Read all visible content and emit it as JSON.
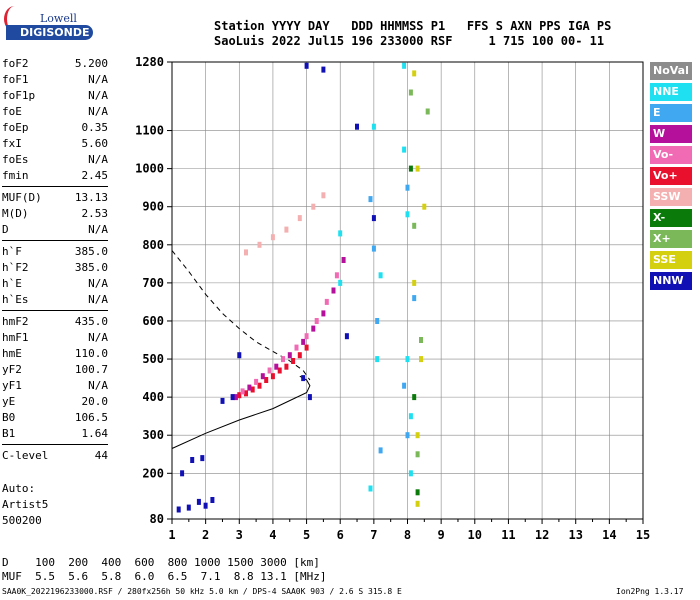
{
  "logo": {
    "line1": "Lowell",
    "line2": "DIGISONDE"
  },
  "header": {
    "line1": "Station YYYY DAY   DDD HHMMSS P1   FFS S AXN PPS IGA PS",
    "line2": "SaoLuis 2022 Jul15 196 233000 RSF     1 715 100 00- 11"
  },
  "params": [
    {
      "label": "foF2",
      "value": "5.200"
    },
    {
      "label": "foF1",
      "value": "N/A"
    },
    {
      "label": "foF1p",
      "value": "N/A"
    },
    {
      "label": "foE",
      "value": "N/A"
    },
    {
      "label": "foEp",
      "value": "0.35"
    },
    {
      "label": "fxI",
      "value": "5.60"
    },
    {
      "label": "foEs",
      "value": "N/A"
    },
    {
      "label": "fmin",
      "value": "2.45"
    },
    {
      "label": "MUF(D)",
      "value": "13.13"
    },
    {
      "label": "M(D)",
      "value": "2.53"
    },
    {
      "label": "D",
      "value": "N/A"
    },
    {
      "label": "h`F",
      "value": "385.0"
    },
    {
      "label": "h`F2",
      "value": "385.0"
    },
    {
      "label": "h`E",
      "value": "N/A"
    },
    {
      "label": "h`Es",
      "value": "N/A"
    },
    {
      "label": "hmF2",
      "value": "435.0"
    },
    {
      "label": "hmF1",
      "value": "N/A"
    },
    {
      "label": "hmE",
      "value": "110.0"
    },
    {
      "label": "yF2",
      "value": "100.7"
    },
    {
      "label": "yF1",
      "value": "N/A"
    },
    {
      "label": "yE",
      "value": "20.0"
    },
    {
      "label": "B0",
      "value": "106.5"
    },
    {
      "label": "B1",
      "value": "1.64"
    },
    {
      "label": "C-level",
      "value": "44"
    }
  ],
  "autoscale": {
    "line1": "Auto:",
    "line2": "Artist5",
    "line3": "500200"
  },
  "legend": [
    {
      "label": "NoVal",
      "color": "#8c8c8c",
      "text_color": "#ffffff"
    },
    {
      "label": "NNE",
      "color": "#1ee0f0",
      "text_color": "#ffffff"
    },
    {
      "label": "E",
      "color": "#3fa8f0",
      "text_color": "#ffffff"
    },
    {
      "label": "W",
      "color": "#b4109c",
      "text_color": "#ffffff"
    },
    {
      "label": "Vo-",
      "color": "#f06ab4",
      "text_color": "#ffffff"
    },
    {
      "label": "Vo+",
      "color": "#e8102c",
      "text_color": "#ffffff"
    },
    {
      "label": "SSW",
      "color": "#f4b0b0",
      "text_color": "#ffffff"
    },
    {
      "label": "X-",
      "color": "#0a7a0a",
      "text_color": "#ffffff"
    },
    {
      "label": "X+",
      "color": "#7ab85a",
      "text_color": "#ffffff"
    },
    {
      "label": "SSE",
      "color": "#d4d010",
      "text_color": "#ffffff"
    },
    {
      "label": "NNW",
      "color": "#1010b4",
      "text_color": "#ffffff"
    }
  ],
  "footer": {
    "d_row": "D    100  200  400  600  800 1000 1500 3000 [km]",
    "muf_row": "MUF  5.5  5.6  5.8  6.0  6.5  7.1  8.8 13.1 [MHz]",
    "source": "SAA0K_2022196233000.RSF / 280fx256h 50 kHz 5.0 km / DPS-4 SAA0K 903 / 2.6 S 315.8 E",
    "version": "Ion2Png 1.3.17"
  },
  "chart_data": {
    "type": "scatter",
    "title": "",
    "xlabel": "",
    "ylabel": "",
    "xlim": [
      1,
      15
    ],
    "ylim": [
      80,
      1280
    ],
    "x_ticks": [
      1,
      2,
      3,
      4,
      5,
      6,
      7,
      8,
      9,
      10,
      11,
      12,
      13,
      14,
      15
    ],
    "y_ticks": [
      80,
      200,
      300,
      400,
      500,
      600,
      700,
      800,
      900,
      1000,
      1100,
      1280
    ],
    "grid": true,
    "series": [
      {
        "name": "Vo+",
        "color": "#e8102c",
        "points": [
          [
            3.0,
            405
          ],
          [
            3.2,
            410
          ],
          [
            3.4,
            420
          ],
          [
            3.6,
            430
          ],
          [
            3.8,
            445
          ],
          [
            4.0,
            455
          ],
          [
            4.2,
            470
          ],
          [
            4.4,
            480
          ],
          [
            4.6,
            495
          ],
          [
            4.8,
            510
          ],
          [
            5.0,
            530
          ]
        ]
      },
      {
        "name": "Vo-",
        "color": "#f06ab4",
        "points": [
          [
            3.1,
            415
          ],
          [
            3.5,
            440
          ],
          [
            3.9,
            470
          ],
          [
            4.3,
            500
          ],
          [
            4.7,
            530
          ],
          [
            5.0,
            560
          ],
          [
            5.3,
            600
          ],
          [
            5.6,
            650
          ],
          [
            5.9,
            720
          ]
        ]
      },
      {
        "name": "W",
        "color": "#b4109c",
        "points": [
          [
            2.9,
            400
          ],
          [
            3.3,
            425
          ],
          [
            3.7,
            455
          ],
          [
            4.1,
            480
          ],
          [
            4.5,
            510
          ],
          [
            4.9,
            545
          ],
          [
            5.2,
            580
          ],
          [
            5.5,
            620
          ],
          [
            5.8,
            680
          ],
          [
            6.1,
            760
          ]
        ]
      },
      {
        "name": "SSW",
        "color": "#f4b0b0",
        "points": [
          [
            3.2,
            780
          ],
          [
            3.6,
            800
          ],
          [
            4.0,
            820
          ],
          [
            4.4,
            840
          ],
          [
            4.8,
            870
          ],
          [
            5.2,
            900
          ],
          [
            5.5,
            930
          ]
        ]
      },
      {
        "name": "NNW",
        "color": "#1010b4",
        "points": [
          [
            1.2,
            105
          ],
          [
            1.5,
            110
          ],
          [
            1.8,
            125
          ],
          [
            2.0,
            115
          ],
          [
            2.2,
            130
          ],
          [
            1.6,
            235
          ],
          [
            1.9,
            240
          ],
          [
            1.3,
            200
          ],
          [
            2.5,
            390
          ],
          [
            2.8,
            400
          ],
          [
            3.0,
            510
          ],
          [
            4.9,
            450
          ],
          [
            5.1,
            400
          ],
          [
            6.2,
            560
          ],
          [
            5.0,
            1270
          ],
          [
            5.5,
            1260
          ],
          [
            6.5,
            1110
          ],
          [
            7.0,
            870
          ]
        ]
      },
      {
        "name": "NNE",
        "color": "#1ee0f0",
        "points": [
          [
            6.0,
            830
          ],
          [
            6.0,
            700
          ],
          [
            7.0,
            1110
          ],
          [
            7.2,
            720
          ],
          [
            7.9,
            1050
          ],
          [
            8.0,
            880
          ],
          [
            8.0,
            500
          ],
          [
            8.1,
            350
          ],
          [
            7.1,
            500
          ],
          [
            6.9,
            160
          ],
          [
            7.9,
            1270
          ],
          [
            8.1,
            200
          ]
        ]
      },
      {
        "name": "E",
        "color": "#3fa8f0",
        "points": [
          [
            7.0,
            790
          ],
          [
            7.1,
            600
          ],
          [
            7.9,
            430
          ],
          [
            8.0,
            300
          ],
          [
            8.0,
            950
          ],
          [
            6.9,
            920
          ],
          [
            8.2,
            660
          ],
          [
            7.2,
            260
          ]
        ]
      },
      {
        "name": "SSE",
        "color": "#d4d010",
        "points": [
          [
            8.2,
            1250
          ],
          [
            8.3,
            1000
          ],
          [
            8.2,
            700
          ],
          [
            8.4,
            500
          ],
          [
            8.3,
            300
          ],
          [
            8.3,
            120
          ],
          [
            8.5,
            900
          ]
        ]
      },
      {
        "name": "X+",
        "color": "#7ab85a",
        "points": [
          [
            8.1,
            1200
          ],
          [
            8.2,
            850
          ],
          [
            8.4,
            550
          ],
          [
            8.3,
            250
          ],
          [
            8.6,
            1150
          ]
        ]
      },
      {
        "name": "X-",
        "color": "#0a7a0a",
        "points": [
          [
            8.1,
            1000
          ],
          [
            8.2,
            400
          ],
          [
            8.3,
            150
          ]
        ]
      }
    ],
    "profile_solid": [
      [
        1,
        265
      ],
      [
        2,
        305
      ],
      [
        3,
        340
      ],
      [
        4,
        370
      ],
      [
        4.6,
        395
      ],
      [
        5.0,
        412
      ],
      [
        5.1,
        430
      ],
      [
        5.0,
        445
      ],
      [
        4.8,
        455
      ]
    ],
    "profile_dashed": [
      [
        1,
        785
      ],
      [
        1.5,
        730
      ],
      [
        2,
        670
      ],
      [
        2.5,
        620
      ],
      [
        3,
        580
      ],
      [
        3.5,
        545
      ],
      [
        4,
        520
      ],
      [
        4.5,
        495
      ],
      [
        4.9,
        470
      ],
      [
        5.1,
        445
      ]
    ]
  }
}
